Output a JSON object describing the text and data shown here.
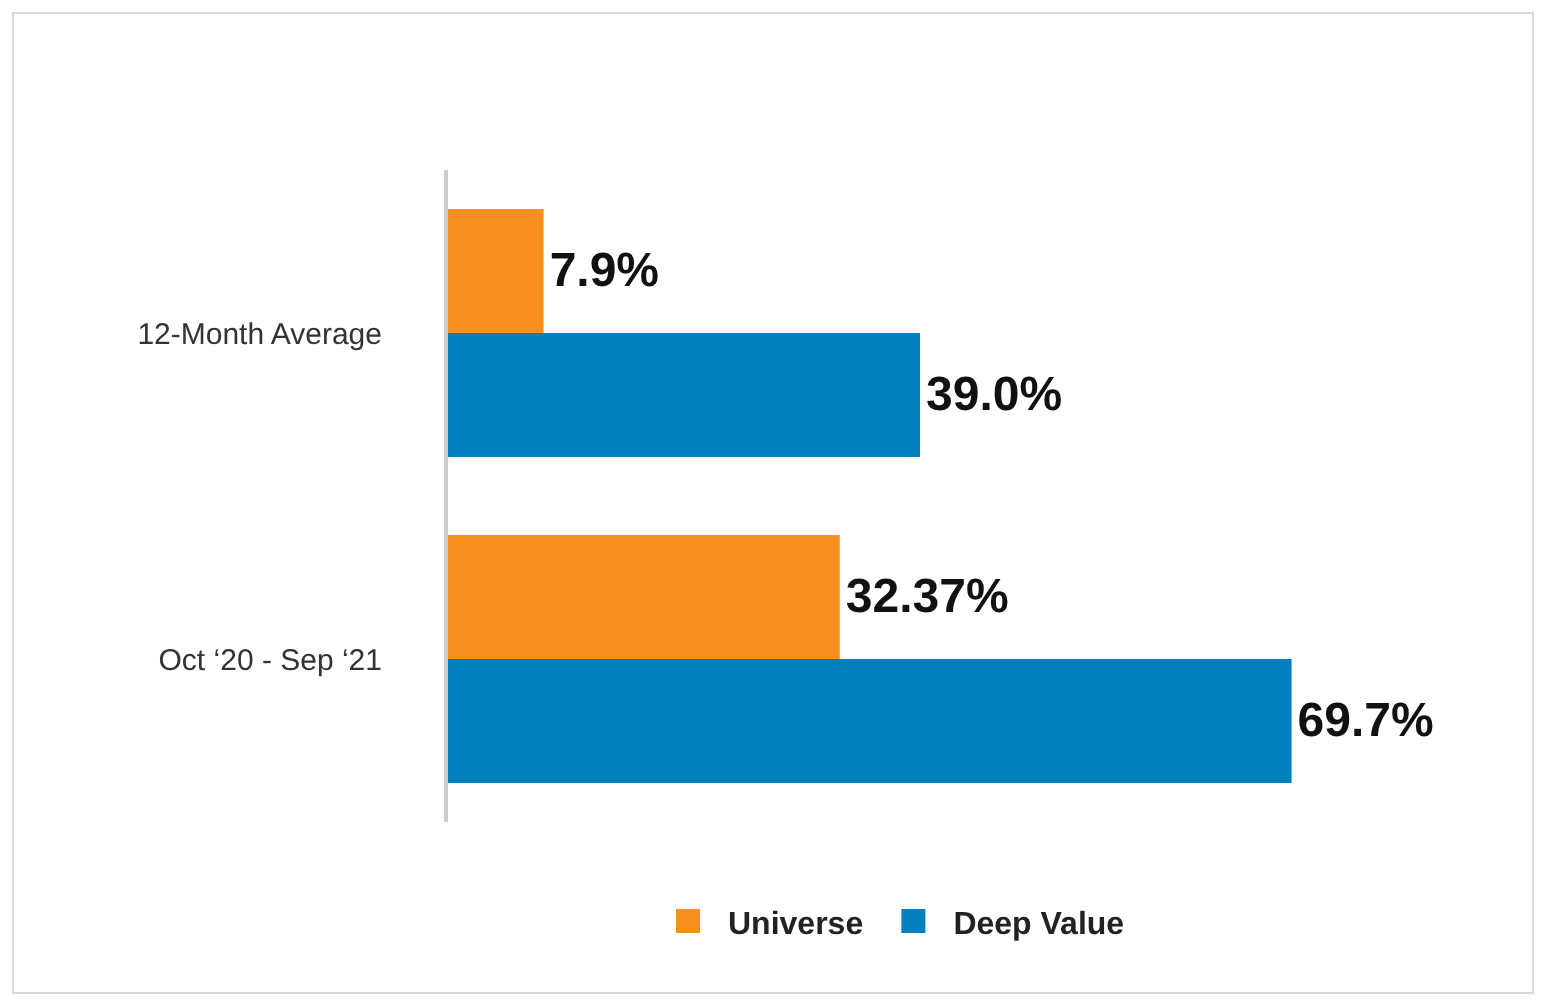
{
  "chart_data": {
    "type": "bar",
    "orientation": "horizontal",
    "categories": [
      "12-Month Average",
      "Oct ‘20 - Sep ‘21"
    ],
    "series": [
      {
        "name": "Universe",
        "color": "#f7901e",
        "values": [
          7.9,
          32.37
        ],
        "value_labels": [
          "7.9%",
          "32.37%"
        ]
      },
      {
        "name": "Deep Value",
        "color": "#0080c0",
        "values": [
          39.0,
          69.7
        ],
        "value_labels": [
          "39.0%",
          "69.7%"
        ]
      }
    ],
    "tick_labels": "y",
    "legend": "bottom"
  }
}
